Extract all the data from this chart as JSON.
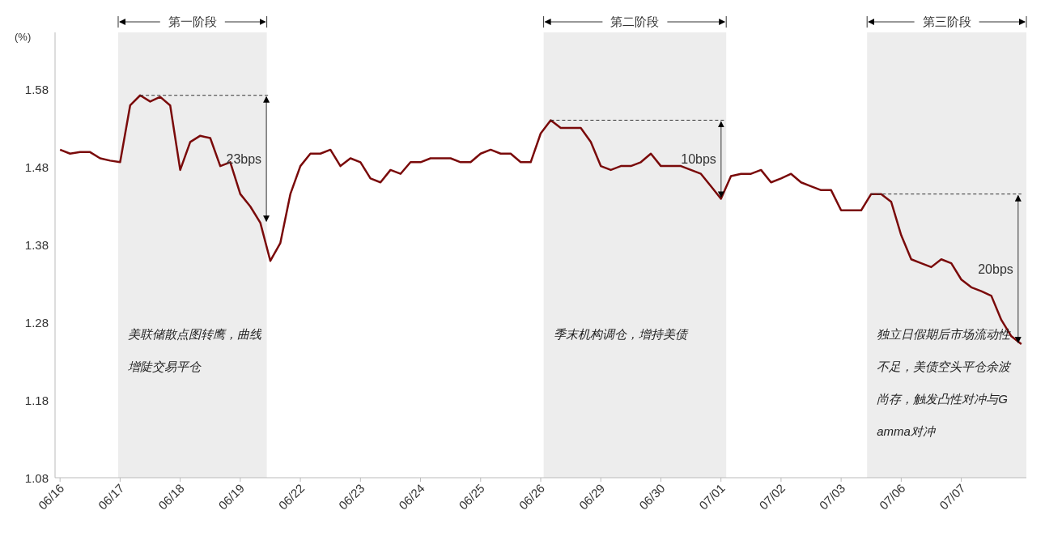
{
  "chart_data": {
    "type": "line",
    "ylabel": "(%)",
    "categories": [
      "06/16",
      null,
      null,
      null,
      null,
      null,
      "06/17",
      null,
      null,
      null,
      null,
      null,
      "06/18",
      null,
      null,
      null,
      null,
      null,
      "06/19",
      null,
      null,
      null,
      null,
      null,
      "06/22",
      null,
      null,
      null,
      null,
      null,
      "06/23",
      null,
      null,
      null,
      null,
      null,
      "06/24",
      null,
      null,
      null,
      null,
      null,
      "06/25",
      null,
      null,
      null,
      null,
      null,
      "06/26",
      null,
      null,
      null,
      null,
      null,
      "06/29",
      null,
      null,
      null,
      null,
      null,
      "06/30",
      null,
      null,
      null,
      null,
      null,
      "07/01",
      null,
      null,
      null,
      null,
      null,
      "07/02",
      null,
      null,
      null,
      null,
      null,
      "07/03",
      null,
      null,
      null,
      null,
      null,
      "07/06",
      null,
      null,
      null,
      null,
      null,
      "07/07",
      null,
      null,
      null,
      null,
      null,
      null
    ],
    "ylim": [
      1.08,
      1.653
    ],
    "yticks": [
      1.08,
      1.18,
      1.28,
      1.38,
      1.48,
      1.58
    ],
    "line_style": "solid",
    "series": [
      {
        "color": "#7a0a0a",
        "values": [
          1.502,
          1.497,
          1.499,
          1.499,
          1.491,
          1.488,
          1.486,
          1.559,
          1.572,
          1.564,
          1.57,
          1.559,
          1.476,
          1.512,
          1.52,
          1.517,
          1.481,
          1.486,
          1.445,
          1.429,
          1.408,
          1.359,
          1.382,
          1.445,
          1.481,
          1.497,
          1.497,
          1.502,
          1.481,
          1.491,
          1.486,
          1.465,
          1.46,
          1.476,
          1.471,
          1.486,
          1.486,
          1.491,
          1.491,
          1.491,
          1.486,
          1.486,
          1.497,
          1.502,
          1.497,
          1.497,
          1.486,
          1.486,
          1.523,
          1.54,
          1.53,
          1.53,
          1.53,
          1.512,
          1.481,
          1.476,
          1.481,
          1.481,
          1.486,
          1.497,
          1.481,
          1.481,
          1.481,
          1.476,
          1.471,
          1.455,
          1.439,
          1.468,
          1.471,
          1.471,
          1.476,
          1.46,
          1.465,
          1.471,
          1.46,
          1.455,
          1.45,
          1.45,
          1.424,
          1.424,
          1.424,
          1.445,
          1.445,
          1.435,
          1.392,
          1.361,
          1.356,
          1.351,
          1.361,
          1.356,
          1.335,
          1.325,
          1.32,
          1.314,
          1.283,
          1.262,
          1.252
        ]
      }
    ],
    "annotations": [
      "第一阶段",
      "第二阶段",
      "第三阶段",
      "23bps",
      "10bps",
      "20bps",
      "美联储散点图转鹰，曲线增陡交易平仓",
      "季末机构调仓，增持美债",
      "独立日假期后市场流动性不足，美债空头平仓余波尚存，触发凸性对冲与Gamma对冲"
    ]
  }
}
